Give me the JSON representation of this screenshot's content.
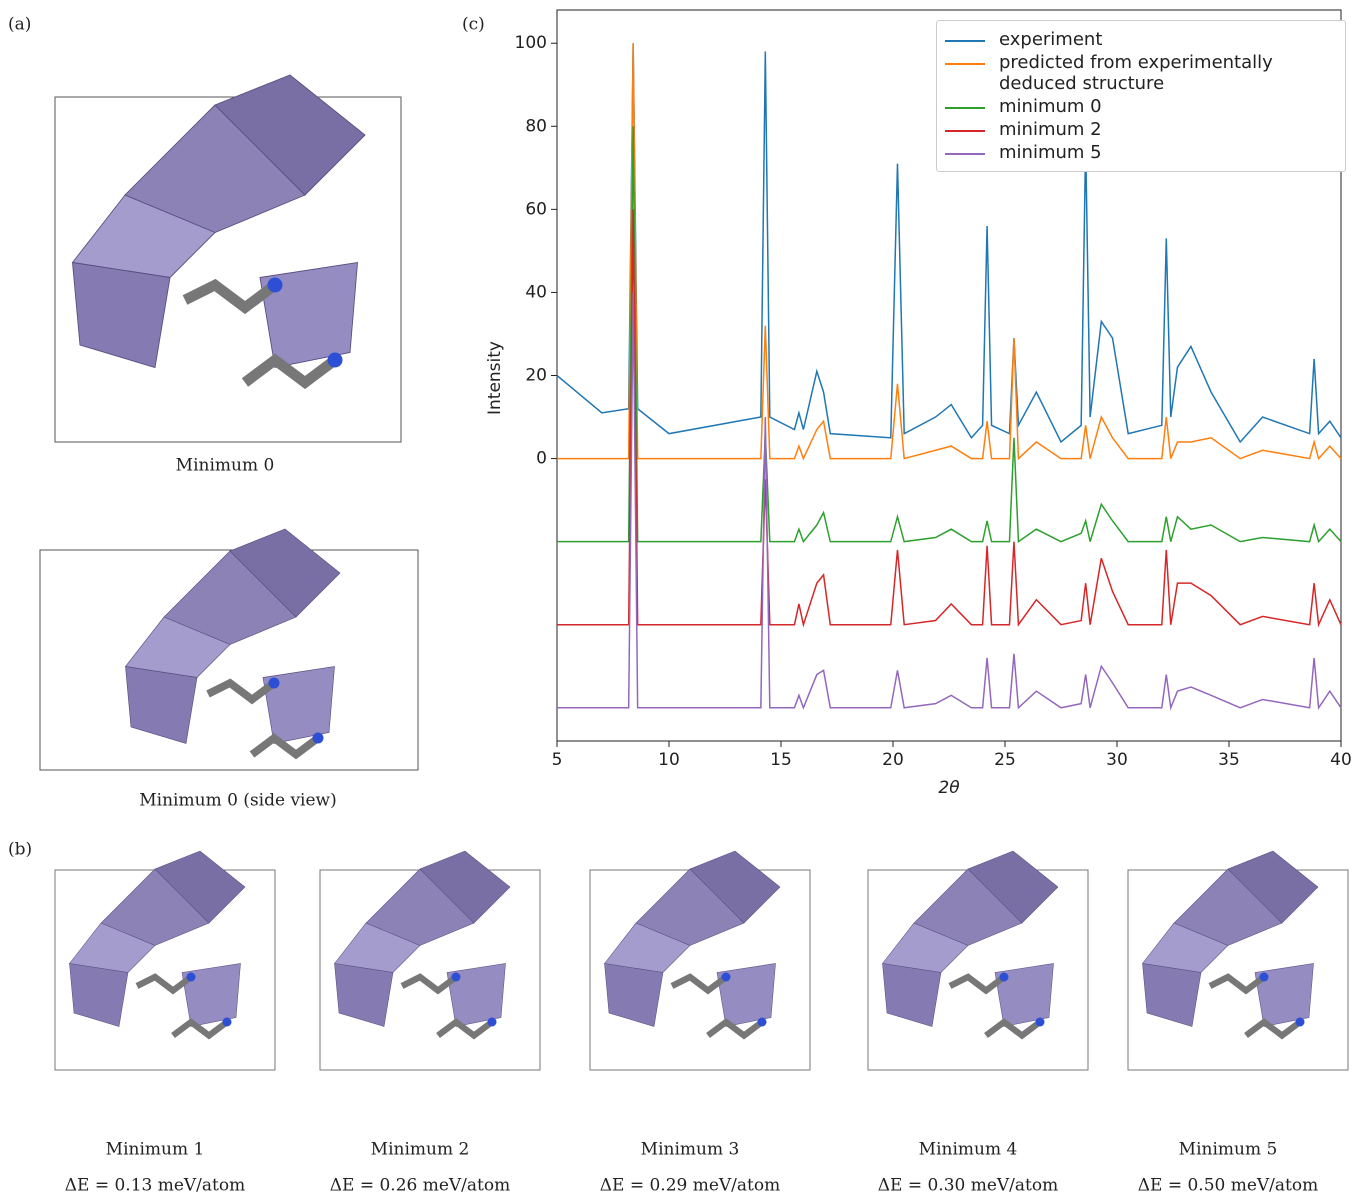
{
  "chart_data": {
    "type": "line",
    "panel_label": "(c)",
    "y_label": "Intensity",
    "x_label": "2θ",
    "x": [
      5,
      7,
      8.2,
      8.4,
      8.6,
      10,
      14.1,
      14.3,
      14.5,
      15.6,
      15.8,
      16.0,
      16.6,
      16.9,
      17.2,
      19.9,
      20.2,
      20.5,
      21.9,
      22.6,
      23.5,
      24.0,
      24.2,
      24.4,
      25.2,
      25.4,
      25.6,
      26.4,
      27.5,
      28.4,
      28.6,
      28.8,
      29.3,
      29.8,
      30.5,
      32.0,
      32.2,
      32.4,
      32.7,
      33.3,
      34.2,
      35.5,
      36.5,
      38.6,
      38.8,
      39.0,
      39.5,
      40
    ],
    "series": [
      {
        "name": "experiment",
        "color": "#1f77b4",
        "values": [
          20,
          11,
          12,
          100,
          12,
          6,
          10,
          98,
          10,
          7,
          11,
          7,
          21,
          16,
          6,
          5,
          71,
          6,
          10,
          13,
          5,
          8,
          56,
          8,
          6,
          29,
          8,
          16,
          4,
          8,
          76,
          10,
          33,
          29,
          6,
          8,
          53,
          10,
          22,
          27,
          16,
          4,
          10,
          6,
          24,
          6,
          9,
          5
        ]
      },
      {
        "name": "predicted from experimentally deduced structure",
        "color": "#ff7f0e",
        "values": [
          0,
          0,
          0,
          100,
          0,
          0,
          0,
          32,
          0,
          0,
          3,
          0,
          7,
          9,
          0,
          0,
          18,
          0,
          2,
          3,
          0,
          0,
          9,
          0,
          0,
          29,
          0,
          4,
          0,
          0,
          8,
          0,
          10,
          5,
          0,
          0,
          10,
          0,
          4,
          4,
          5,
          0,
          2,
          0,
          4,
          0,
          3,
          0
        ]
      },
      {
        "name": "minimum 0",
        "color": "#2ca02c",
        "values": [
          -20,
          -20,
          -20,
          80,
          -20,
          -20,
          -20,
          6,
          -20,
          -20,
          -17,
          -20,
          -16,
          -13,
          -20,
          -20,
          -14,
          -20,
          -19,
          -17,
          -20,
          -20,
          -15,
          -20,
          -20,
          5,
          -20,
          -17,
          -20,
          -18,
          -15,
          -20,
          -11,
          -15,
          -20,
          -20,
          -14,
          -20,
          -14,
          -17,
          -16,
          -20,
          -19,
          -20,
          -16,
          -20,
          -17,
          -20
        ]
      },
      {
        "name": "minimum 2",
        "color": "#d62728",
        "values": [
          -40,
          -40,
          -40,
          60,
          -40,
          -40,
          -40,
          -5,
          -40,
          -40,
          -35,
          -40,
          -30,
          -28,
          -40,
          -40,
          -22,
          -40,
          -39,
          -35,
          -40,
          -40,
          -21,
          -40,
          -40,
          -20,
          -40,
          -34,
          -40,
          -39,
          -30,
          -40,
          -24,
          -32,
          -40,
          -40,
          -22,
          -40,
          -30,
          -30,
          -33,
          -40,
          -38,
          -40,
          -30,
          -40,
          -34,
          -40
        ]
      },
      {
        "name": "minimum 5",
        "color": "#9467bd",
        "values": [
          -60,
          -60,
          -60,
          40,
          -60,
          -60,
          -60,
          10,
          -60,
          -60,
          -57,
          -60,
          -52,
          -51,
          -60,
          -60,
          -51,
          -60,
          -59,
          -57,
          -60,
          -60,
          -48,
          -60,
          -60,
          -47,
          -60,
          -56,
          -60,
          -59,
          -52,
          -60,
          -50,
          -54,
          -60,
          -60,
          -52,
          -60,
          -56,
          -55,
          -57,
          -60,
          -58,
          -60,
          -48,
          -60,
          -56,
          -60
        ]
      }
    ],
    "xlim": [
      5,
      40
    ],
    "xticks": [
      5,
      10,
      15,
      20,
      25,
      30,
      35,
      40
    ],
    "ylim": [
      -68,
      108
    ],
    "yticks": [
      0,
      20,
      40,
      60,
      80,
      100
    ],
    "legend": "upper right"
  },
  "panels": {
    "a": {
      "label": "(a)",
      "captions": [
        "Minimum 0",
        "Minimum 0 (side view)"
      ]
    },
    "b": {
      "label": "(b)",
      "structures": [
        {
          "title": "Minimum 1",
          "energy": "ΔE = 0.13 meV/atom"
        },
        {
          "title": "Minimum 2",
          "energy": "ΔE = 0.26 meV/atom"
        },
        {
          "title": "Minimum 3",
          "energy": "ΔE = 0.29 meV/atom"
        },
        {
          "title": "Minimum 4",
          "energy": "ΔE = 0.30 meV/atom"
        },
        {
          "title": "Minimum 5",
          "energy": "ΔE = 0.50 meV/atom"
        }
      ]
    }
  }
}
